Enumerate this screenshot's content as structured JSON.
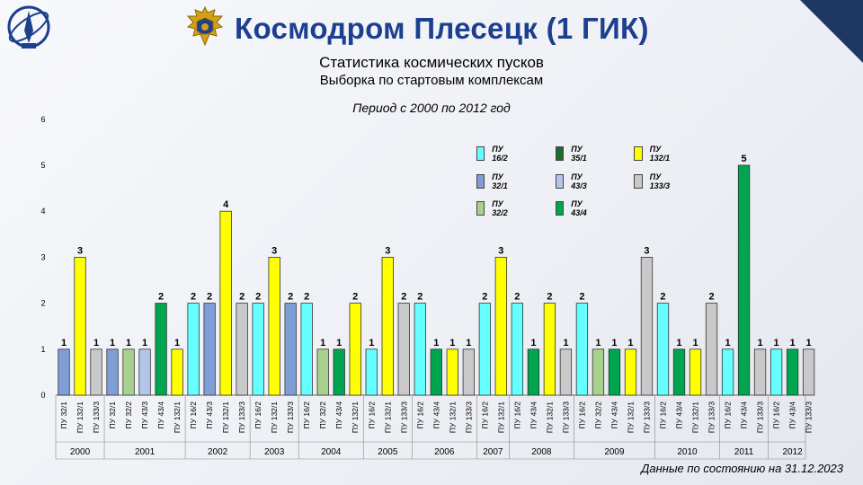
{
  "header": {
    "title": "Космодром Плесецк (1 ГИК)",
    "subtitle_1": "Статистика космических пусков",
    "subtitle_2": "Выборка по стартовым комплексам",
    "period": "Период с 2000 по 2012 год",
    "footer": "Данные по состоянию на 31.12.2023"
  },
  "icons": {
    "left_logo": "cosmodrome-emblem-icon",
    "title_logo": "eagle-crest-icon"
  },
  "chart_data": {
    "type": "bar",
    "ylim": [
      0,
      6
    ],
    "yticks": [
      0,
      1,
      2,
      3,
      4,
      5,
      6
    ],
    "grid": false,
    "legend_position": "top-right",
    "legend": [
      {
        "name": "ПУ 16/2",
        "color": "#66ffff"
      },
      {
        "name": "ПУ 35/1",
        "color": "#1f6b2a"
      },
      {
        "name": "ПУ 132/1",
        "color": "#ffff00"
      },
      {
        "name": "ПУ 32/1",
        "color": "#7f9ed6"
      },
      {
        "name": "ПУ 43/3",
        "color": "#b4c6e7"
      },
      {
        "name": "ПУ 133/3",
        "color": "#c9c9c9"
      },
      {
        "name": "ПУ 32/2",
        "color": "#a9d18e"
      },
      {
        "name": "ПУ 43/4",
        "color": "#00a550"
      }
    ],
    "groups": [
      {
        "year": "2000",
        "bars": [
          {
            "label": "ПУ 32/1",
            "value": 1,
            "color": "#7f9ed6"
          },
          {
            "label": "ПУ 132/1",
            "value": 3,
            "color": "#ffff00"
          },
          {
            "label": "ПУ 133/3",
            "value": 1,
            "color": "#c9c9c9"
          }
        ]
      },
      {
        "year": "2001",
        "bars": [
          {
            "label": "ПУ 32/1",
            "value": 1,
            "color": "#7f9ed6"
          },
          {
            "label": "ПУ 32/2",
            "value": 1,
            "color": "#a9d18e"
          },
          {
            "label": "ПУ 43/3",
            "value": 1,
            "color": "#b4c6e7"
          },
          {
            "label": "ПУ 43/4",
            "value": 2,
            "color": "#00a550"
          },
          {
            "label": "ПУ 132/1",
            "value": 1,
            "color": "#ffff00"
          }
        ]
      },
      {
        "year": "2002",
        "bars": [
          {
            "label": "ПУ 16/2",
            "value": 2,
            "color": "#66ffff"
          },
          {
            "label": "ПУ 43/3",
            "value": 2,
            "color": "#7f9ed6"
          },
          {
            "label": "ПУ 132/1",
            "value": 4,
            "color": "#ffff00"
          },
          {
            "label": "ПУ 133/3",
            "value": 2,
            "color": "#c9c9c9"
          }
        ]
      },
      {
        "year": "2003",
        "bars": [
          {
            "label": "ПУ 16/2",
            "value": 2,
            "color": "#66ffff"
          },
          {
            "label": "ПУ 132/1",
            "value": 3,
            "color": "#ffff00"
          },
          {
            "label": "ПУ 133/3",
            "value": 2,
            "color": "#7f9ed6"
          }
        ]
      },
      {
        "year": "2004",
        "bars": [
          {
            "label": "ПУ 16/2",
            "value": 2,
            "color": "#66ffff"
          },
          {
            "label": "ПУ 32/2",
            "value": 1,
            "color": "#a9d18e"
          },
          {
            "label": "ПУ 43/4",
            "value": 1,
            "color": "#00a550"
          },
          {
            "label": "ПУ 132/1",
            "value": 2,
            "color": "#ffff00"
          }
        ]
      },
      {
        "year": "2005",
        "bars": [
          {
            "label": "ПУ 16/2",
            "value": 1,
            "color": "#66ffff"
          },
          {
            "label": "ПУ 132/1",
            "value": 3,
            "color": "#ffff00"
          },
          {
            "label": "ПУ 133/3",
            "value": 2,
            "color": "#c9c9c9"
          }
        ]
      },
      {
        "year": "2006",
        "bars": [
          {
            "label": "ПУ 16/2",
            "value": 2,
            "color": "#66ffff"
          },
          {
            "label": "ПУ 43/4",
            "value": 1,
            "color": "#00a550"
          },
          {
            "label": "ПУ 132/1",
            "value": 1,
            "color": "#ffff00"
          },
          {
            "label": "ПУ 133/3",
            "value": 1,
            "color": "#c9c9c9"
          }
        ]
      },
      {
        "year": "2007",
        "bars": [
          {
            "label": "ПУ 16/2",
            "value": 2,
            "color": "#66ffff"
          },
          {
            "label": "ПУ 132/1",
            "value": 3,
            "color": "#ffff00"
          }
        ]
      },
      {
        "year": "2008",
        "bars": [
          {
            "label": "ПУ 16/2",
            "value": 2,
            "color": "#66ffff"
          },
          {
            "label": "ПУ 43/4",
            "value": 1,
            "color": "#00a550"
          },
          {
            "label": "ПУ 132/1",
            "value": 2,
            "color": "#ffff00"
          },
          {
            "label": "ПУ 133/3",
            "value": 1,
            "color": "#c9c9c9"
          }
        ]
      },
      {
        "year": "2009",
        "bars": [
          {
            "label": "ПУ 16/2",
            "value": 2,
            "color": "#66ffff"
          },
          {
            "label": "ПУ 32/2",
            "value": 1,
            "color": "#a9d18e"
          },
          {
            "label": "ПУ 43/4",
            "value": 1,
            "color": "#00a550"
          },
          {
            "label": "ПУ 132/1",
            "value": 1,
            "color": "#ffff00"
          },
          {
            "label": "ПУ 133/3",
            "value": 3,
            "color": "#c9c9c9"
          }
        ]
      },
      {
        "year": "2010",
        "bars": [
          {
            "label": "ПУ 16/2",
            "value": 2,
            "color": "#66ffff"
          },
          {
            "label": "ПУ 43/4",
            "value": 1,
            "color": "#00a550"
          },
          {
            "label": "ПУ 132/1",
            "value": 1,
            "color": "#ffff00"
          },
          {
            "label": "ПУ 133/3",
            "value": 2,
            "color": "#c9c9c9"
          }
        ]
      },
      {
        "year": "2011",
        "bars": [
          {
            "label": "ПУ 16/2",
            "value": 1,
            "color": "#66ffff"
          },
          {
            "label": "ПУ 43/4",
            "value": 5,
            "color": "#00a550"
          },
          {
            "label": "ПУ 133/3",
            "value": 1,
            "color": "#c9c9c9"
          }
        ]
      },
      {
        "year": "2012",
        "bars": [
          {
            "label": "ПУ 16/2",
            "value": 1,
            "color": "#66ffff"
          },
          {
            "label": "ПУ 43/4",
            "value": 1,
            "color": "#00a550"
          },
          {
            "label": "ПУ 133/3",
            "value": 1,
            "color": "#c9c9c9"
          }
        ]
      }
    ]
  }
}
